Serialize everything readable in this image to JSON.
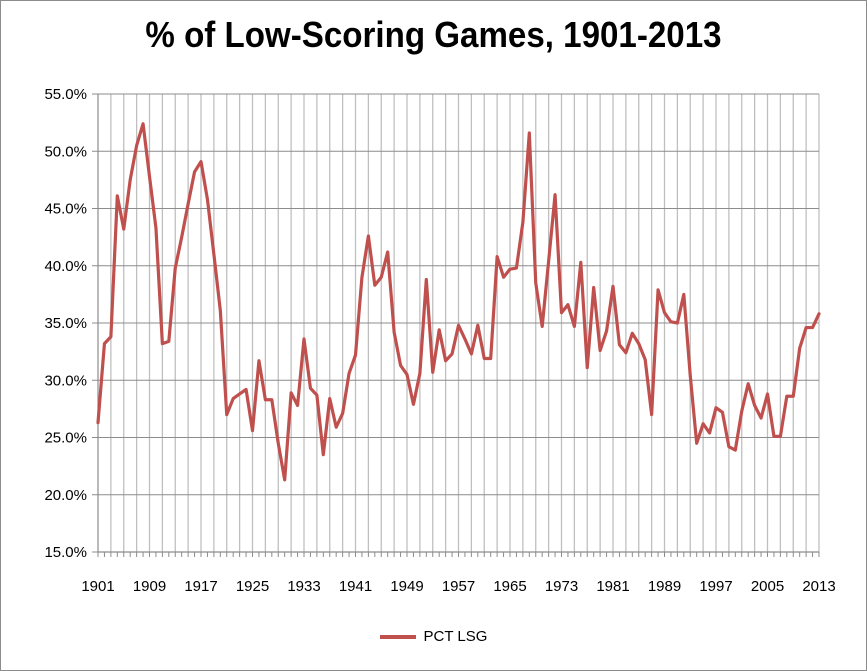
{
  "chart_data": {
    "type": "line",
    "title": "% of Low-Scoring Games, 1901-2013",
    "xlabel": "",
    "ylabel": "",
    "ylim": [
      0.15,
      0.55
    ],
    "xlim": [
      1901,
      2013
    ],
    "y_ticks": [
      "15.0%",
      "20.0%",
      "25.0%",
      "30.0%",
      "35.0%",
      "40.0%",
      "45.0%",
      "50.0%",
      "55.0%"
    ],
    "x_ticks": [
      "1901",
      "1909",
      "1917",
      "1925",
      "1933",
      "1941",
      "1949",
      "1957",
      "1965",
      "1973",
      "1981",
      "1989",
      "1997",
      "2005",
      "2013"
    ],
    "grid": true,
    "legend_position": "bottom",
    "series": [
      {
        "name": "PCT LSG",
        "color": "#c0504d",
        "x": [
          1901,
          1902,
          1903,
          1904,
          1905,
          1906,
          1907,
          1908,
          1909,
          1910,
          1911,
          1912,
          1913,
          1914,
          1915,
          1916,
          1917,
          1918,
          1919,
          1920,
          1921,
          1922,
          1923,
          1924,
          1925,
          1926,
          1927,
          1928,
          1929,
          1930,
          1931,
          1932,
          1933,
          1934,
          1935,
          1936,
          1937,
          1938,
          1939,
          1940,
          1941,
          1942,
          1943,
          1944,
          1945,
          1946,
          1947,
          1948,
          1949,
          1950,
          1951,
          1952,
          1953,
          1954,
          1955,
          1956,
          1957,
          1958,
          1959,
          1960,
          1961,
          1962,
          1963,
          1964,
          1965,
          1966,
          1967,
          1968,
          1969,
          1970,
          1971,
          1972,
          1973,
          1974,
          1975,
          1976,
          1977,
          1978,
          1979,
          1980,
          1981,
          1982,
          1983,
          1984,
          1985,
          1986,
          1987,
          1988,
          1989,
          1990,
          1991,
          1992,
          1993,
          1994,
          1995,
          1996,
          1997,
          1998,
          1999,
          2000,
          2001,
          2002,
          2003,
          2004,
          2005,
          2006,
          2007,
          2008,
          2009,
          2010,
          2011,
          2012,
          2013
        ],
        "values": [
          0.263,
          0.332,
          0.338,
          0.461,
          0.432,
          0.475,
          0.505,
          0.524,
          0.478,
          0.433,
          0.332,
          0.334,
          0.398,
          0.425,
          0.454,
          0.482,
          0.491,
          0.458,
          0.41,
          0.361,
          0.27,
          0.284,
          0.288,
          0.292,
          0.256,
          0.317,
          0.283,
          0.283,
          0.245,
          0.213,
          0.289,
          0.278,
          0.336,
          0.293,
          0.287,
          0.235,
          0.284,
          0.259,
          0.271,
          0.306,
          0.322,
          0.39,
          0.426,
          0.383,
          0.39,
          0.412,
          0.342,
          0.313,
          0.305,
          0.279,
          0.306,
          0.388,
          0.307,
          0.344,
          0.317,
          0.323,
          0.348,
          0.336,
          0.323,
          0.348,
          0.319,
          0.319,
          0.408,
          0.39,
          0.397,
          0.398,
          0.438,
          0.516,
          0.385,
          0.347,
          0.404,
          0.462,
          0.359,
          0.366,
          0.347,
          0.403,
          0.311,
          0.381,
          0.326,
          0.343,
          0.382,
          0.331,
          0.324,
          0.341,
          0.332,
          0.318,
          0.27,
          0.379,
          0.359,
          0.351,
          0.35,
          0.375,
          0.304,
          0.245,
          0.262,
          0.254,
          0.276,
          0.272,
          0.242,
          0.239,
          0.273,
          0.297,
          0.278,
          0.267,
          0.288,
          0.251,
          0.251,
          0.286,
          0.286,
          0.328,
          0.346,
          0.346,
          0.358
        ]
      }
    ]
  }
}
